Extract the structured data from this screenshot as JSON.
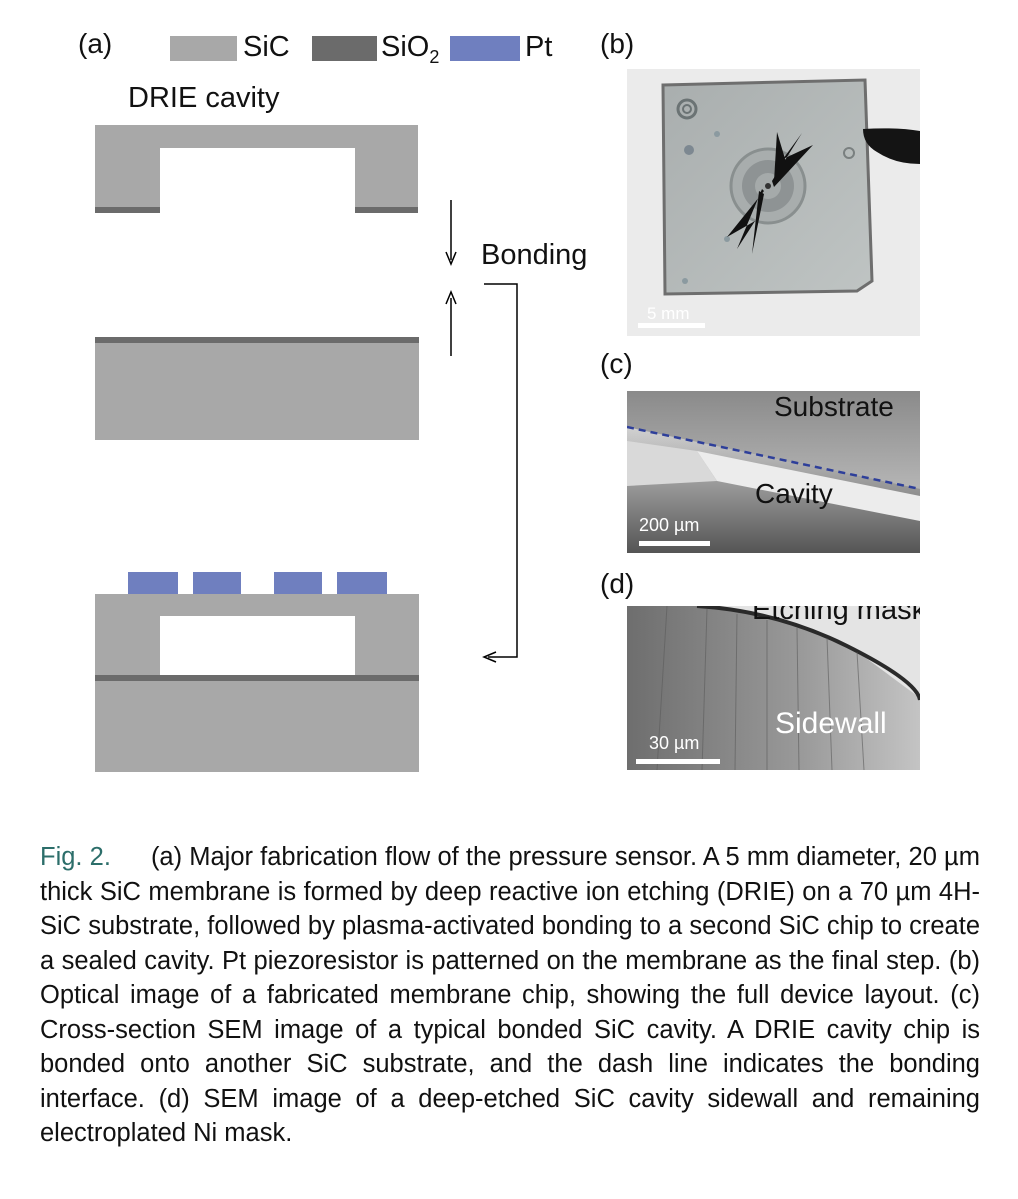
{
  "panel_labels": {
    "a": "(a)",
    "b": "(b)",
    "c": "(c)",
    "d": "(d)"
  },
  "legend": [
    {
      "label": "SiC",
      "color": "#a8a8a8"
    },
    {
      "label": "SiO",
      "sub": "2",
      "color": "#6b6b6b"
    },
    {
      "label": "Pt",
      "color": "#6f7fbf"
    }
  ],
  "diagram": {
    "cavity_label": "DRIE cavity",
    "bonding_label": "Bonding"
  },
  "photos": {
    "b": {
      "scale": "5 mm"
    },
    "c": {
      "substrate": "Substrate",
      "cavity": "Cavity",
      "scale": "200 µm"
    },
    "d": {
      "mask": "Etching mask",
      "sidewall": "Sidewall",
      "scale": "30 µm"
    }
  },
  "caption": {
    "label": "Fig. 2.",
    "text": "(a) Major fabrication flow of the pressure sensor. A 5 mm diameter, 20 µm thick SiC membrane is formed by deep reactive ion etching (DRIE) on a 70 µm 4H-SiC substrate, followed by plasma-activated bonding to a second SiC chip to create a sealed cavity. Pt piezoresistor is patterned on the membrane as the final step. (b) Optical image of a fabricated membrane chip, showing the full device layout. (c) Cross-section SEM image of a typical bonded SiC cavity. A DRIE cavity chip is bonded onto another SiC substrate, and the dash line indicates the bonding interface. (d) SEM image of a deep-etched SiC cavity sidewall and remaining electroplated Ni mask."
  }
}
